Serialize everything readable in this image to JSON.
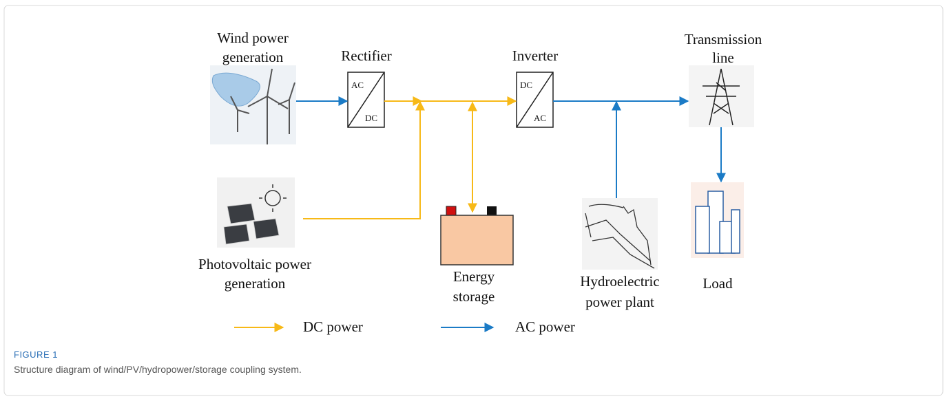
{
  "nodes": {
    "wind": {
      "label": [
        "Wind power",
        "generation"
      ]
    },
    "pv": {
      "label": [
        "Photovoltaic power",
        "generation"
      ]
    },
    "storage": {
      "label": [
        "Energy",
        "storage"
      ]
    },
    "hydro": {
      "label": [
        "Hydroelectric",
        "power plant"
      ]
    },
    "transmission": {
      "label": [
        "Transmission",
        "line"
      ]
    },
    "load": {
      "label": [
        "Load"
      ]
    }
  },
  "converters": [
    {
      "label": "Rectifier",
      "top": "AC",
      "bottom": "DC"
    },
    {
      "label": "Inverter",
      "top": "DC",
      "bottom": "AC"
    }
  ],
  "legend": [
    {
      "label": "DC power"
    },
    {
      "label": "AC power"
    }
  ],
  "caption": {
    "label": "FIGURE 1",
    "text": "Structure diagram of wind/PV/hydropower/storage coupling system."
  }
}
